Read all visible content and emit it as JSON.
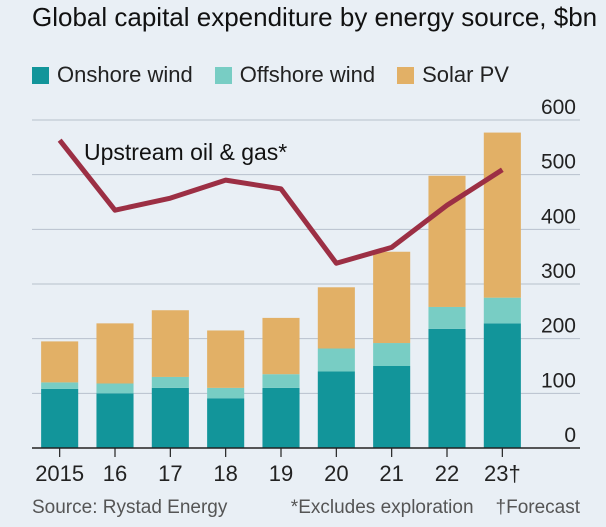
{
  "header": {
    "title": "Global capital expenditure by energy source, $bn"
  },
  "legend": [
    {
      "label": "Onshore wind",
      "color": "#12959a"
    },
    {
      "label": "Offshore wind",
      "color": "#78cdc4"
    },
    {
      "label": "Solar PV",
      "color": "#e2b066"
    }
  ],
  "footer": {
    "source": "Source: Rystad Energy",
    "note_exploration": "*Excludes exploration",
    "note_forecast": "†Forecast"
  },
  "chart_data": {
    "type": "bar",
    "stacked": true,
    "categories": [
      "2015",
      "16",
      "17",
      "18",
      "19",
      "20",
      "21",
      "22",
      "23†"
    ],
    "series": [
      {
        "name": "Onshore wind",
        "color": "#12959a",
        "values": [
          108,
          100,
          110,
          91,
          110,
          140,
          150,
          218,
          228
        ]
      },
      {
        "name": "Offshore wind",
        "color": "#78cdc4",
        "values": [
          12,
          18,
          20,
          19,
          25,
          42,
          42,
          40,
          47
        ]
      },
      {
        "name": "Solar PV",
        "color": "#e2b066",
        "values": [
          75,
          110,
          122,
          105,
          103,
          112,
          167,
          240,
          302
        ]
      }
    ],
    "line_series": {
      "name": "Upstream oil & gas*",
      "color": "#9c2f44",
      "values": [
        563,
        435,
        457,
        490,
        474,
        338,
        367,
        444,
        509
      ]
    },
    "yticks": [
      0,
      100,
      200,
      300,
      400,
      500,
      600
    ],
    "ylim": [
      0,
      600
    ],
    "grid": true,
    "yaxis_position": "right",
    "legend_position": "top-left"
  }
}
